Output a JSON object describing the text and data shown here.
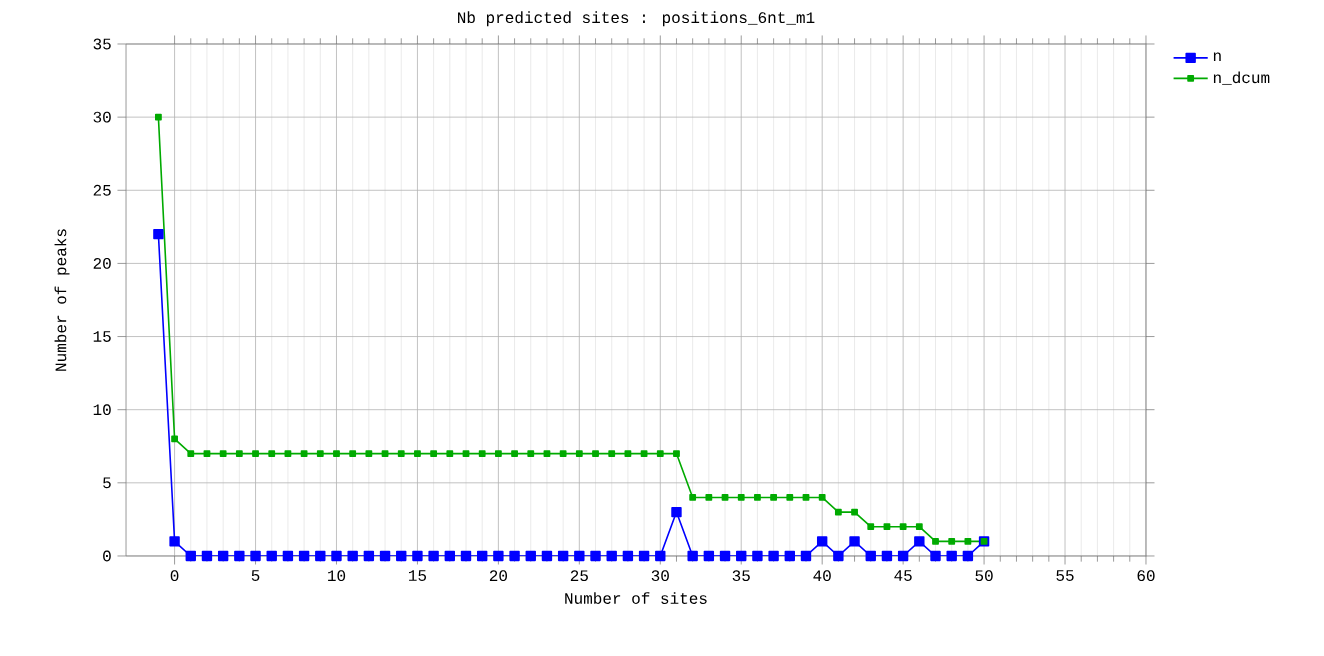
{
  "chart_data": {
    "type": "line",
    "title": "Nb predicted sites : positions_6nt_m1",
    "xlabel": "Number of sites",
    "ylabel": "Number of peaks",
    "x": [
      -1,
      0,
      1,
      2,
      3,
      4,
      5,
      6,
      7,
      8,
      9,
      10,
      11,
      12,
      13,
      14,
      15,
      16,
      17,
      18,
      19,
      20,
      21,
      22,
      23,
      24,
      25,
      26,
      27,
      28,
      29,
      30,
      31,
      32,
      33,
      34,
      35,
      36,
      37,
      38,
      39,
      40,
      41,
      42,
      43,
      44,
      45,
      46,
      47,
      48,
      49,
      50
    ],
    "series": [
      {
        "name": "n",
        "color": "#0000ff",
        "values": [
          22,
          1,
          0,
          0,
          0,
          0,
          0,
          0,
          0,
          0,
          0,
          0,
          0,
          0,
          0,
          0,
          0,
          0,
          0,
          0,
          0,
          0,
          0,
          0,
          0,
          0,
          0,
          0,
          0,
          0,
          0,
          0,
          3,
          0,
          0,
          0,
          0,
          0,
          0,
          0,
          0,
          1,
          0,
          1,
          0,
          0,
          0,
          1,
          0,
          0,
          0,
          1
        ]
      },
      {
        "name": "n_dcum",
        "color": "#00aa00",
        "values": [
          30,
          8,
          7,
          7,
          7,
          7,
          7,
          7,
          7,
          7,
          7,
          7,
          7,
          7,
          7,
          7,
          7,
          7,
          7,
          7,
          7,
          7,
          7,
          7,
          7,
          7,
          7,
          7,
          7,
          7,
          7,
          7,
          7,
          4,
          4,
          4,
          4,
          4,
          4,
          4,
          4,
          4,
          3,
          3,
          2,
          2,
          2,
          2,
          1,
          1,
          1,
          1
        ]
      }
    ],
    "xlim": [
      -3,
      60
    ],
    "ylim": [
      0,
      35
    ],
    "xticks": [
      0,
      5,
      10,
      15,
      20,
      25,
      30,
      35,
      40,
      45,
      50,
      55,
      60
    ],
    "yticks": [
      0,
      5,
      10,
      15,
      20,
      25,
      30,
      35
    ],
    "grid": true,
    "legend": "top right",
    "marker": "square",
    "line_style": "solid"
  }
}
